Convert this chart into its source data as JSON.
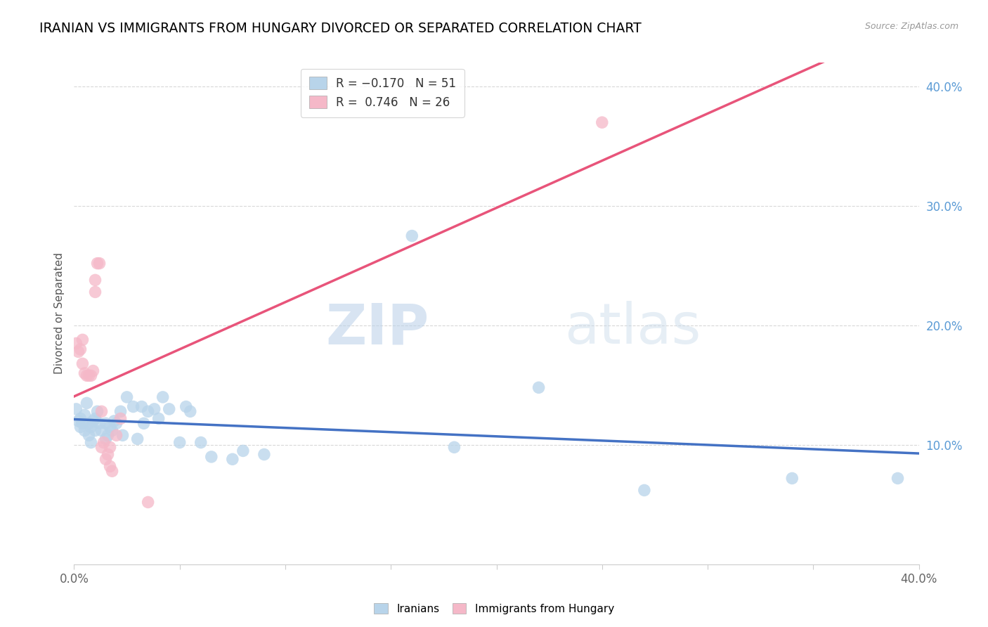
{
  "title": "IRANIAN VS IMMIGRANTS FROM HUNGARY DIVORCED OR SEPARATED CORRELATION CHART",
  "source": "Source: ZipAtlas.com",
  "ylabel": "Divorced or Separated",
  "xlim": [
    0.0,
    0.4
  ],
  "ylim": [
    0.0,
    0.42
  ],
  "xticks": [
    0.0,
    0.05,
    0.1,
    0.15,
    0.2,
    0.25,
    0.3,
    0.35,
    0.4
  ],
  "xticklabels": [
    "0.0%",
    "",
    "",
    "",
    "",
    "",
    "",
    "",
    "40.0%"
  ],
  "yticks_right": [
    0.1,
    0.2,
    0.3,
    0.4
  ],
  "ytick_right_labels": [
    "10.0%",
    "20.0%",
    "30.0%",
    "40.0%"
  ],
  "iranians_color": "#b8d4ea",
  "hungary_color": "#f5b8c8",
  "iranians_line_color": "#4472c4",
  "hungary_line_color": "#e8547a",
  "iranians_scatter": [
    [
      0.001,
      0.13
    ],
    [
      0.002,
      0.12
    ],
    [
      0.003,
      0.122
    ],
    [
      0.003,
      0.115
    ],
    [
      0.004,
      0.118
    ],
    [
      0.005,
      0.112
    ],
    [
      0.005,
      0.125
    ],
    [
      0.006,
      0.135
    ],
    [
      0.007,
      0.118
    ],
    [
      0.007,
      0.108
    ],
    [
      0.008,
      0.115
    ],
    [
      0.008,
      0.102
    ],
    [
      0.009,
      0.12
    ],
    [
      0.01,
      0.112
    ],
    [
      0.01,
      0.122
    ],
    [
      0.011,
      0.128
    ],
    [
      0.012,
      0.118
    ],
    [
      0.013,
      0.112
    ],
    [
      0.015,
      0.118
    ],
    [
      0.015,
      0.105
    ],
    [
      0.016,
      0.108
    ],
    [
      0.017,
      0.115
    ],
    [
      0.018,
      0.112
    ],
    [
      0.019,
      0.12
    ],
    [
      0.02,
      0.118
    ],
    [
      0.022,
      0.128
    ],
    [
      0.023,
      0.108
    ],
    [
      0.025,
      0.14
    ],
    [
      0.028,
      0.132
    ],
    [
      0.03,
      0.105
    ],
    [
      0.032,
      0.132
    ],
    [
      0.033,
      0.118
    ],
    [
      0.035,
      0.128
    ],
    [
      0.038,
      0.13
    ],
    [
      0.04,
      0.122
    ],
    [
      0.042,
      0.14
    ],
    [
      0.045,
      0.13
    ],
    [
      0.05,
      0.102
    ],
    [
      0.053,
      0.132
    ],
    [
      0.055,
      0.128
    ],
    [
      0.06,
      0.102
    ],
    [
      0.065,
      0.09
    ],
    [
      0.075,
      0.088
    ],
    [
      0.08,
      0.095
    ],
    [
      0.09,
      0.092
    ],
    [
      0.16,
      0.275
    ],
    [
      0.18,
      0.098
    ],
    [
      0.22,
      0.148
    ],
    [
      0.27,
      0.062
    ],
    [
      0.34,
      0.072
    ],
    [
      0.39,
      0.072
    ]
  ],
  "hungary_scatter": [
    [
      0.001,
      0.185
    ],
    [
      0.002,
      0.178
    ],
    [
      0.003,
      0.18
    ],
    [
      0.004,
      0.188
    ],
    [
      0.004,
      0.168
    ],
    [
      0.005,
      0.16
    ],
    [
      0.006,
      0.158
    ],
    [
      0.007,
      0.158
    ],
    [
      0.008,
      0.158
    ],
    [
      0.009,
      0.162
    ],
    [
      0.01,
      0.238
    ],
    [
      0.01,
      0.228
    ],
    [
      0.011,
      0.252
    ],
    [
      0.012,
      0.252
    ],
    [
      0.013,
      0.128
    ],
    [
      0.013,
      0.098
    ],
    [
      0.014,
      0.102
    ],
    [
      0.015,
      0.088
    ],
    [
      0.016,
      0.092
    ],
    [
      0.017,
      0.098
    ],
    [
      0.017,
      0.082
    ],
    [
      0.018,
      0.078
    ],
    [
      0.02,
      0.108
    ],
    [
      0.022,
      0.122
    ],
    [
      0.035,
      0.052
    ],
    [
      0.25,
      0.37
    ]
  ],
  "watermark_zip": "ZIP",
  "watermark_atlas": "atlas",
  "grid_color": "#d8d8d8"
}
